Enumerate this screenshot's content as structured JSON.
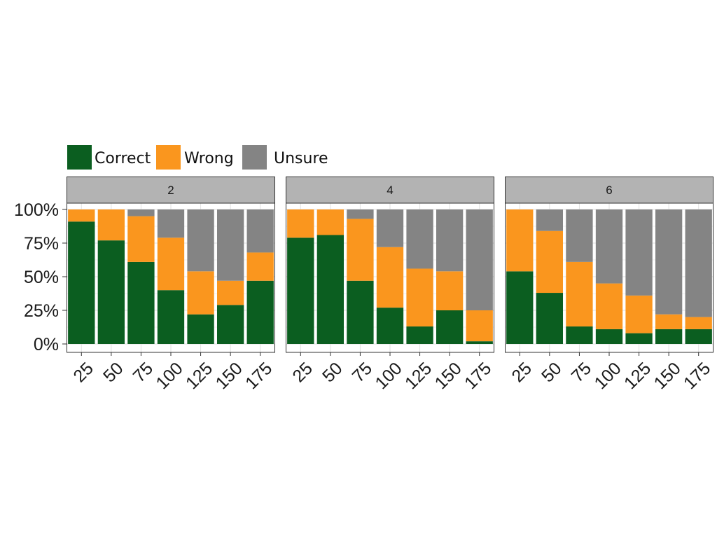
{
  "chart_data": {
    "type": "bar",
    "stacked": true,
    "facet_labels": [
      "2",
      "4",
      "6"
    ],
    "categories": [
      "25",
      "50",
      "75",
      "100",
      "125",
      "150",
      "175"
    ],
    "y_ticks": [
      "0%",
      "25%",
      "50%",
      "75%",
      "100%"
    ],
    "ylim": [
      0,
      100
    ],
    "legend_position": "top-left",
    "grid": true,
    "legend": [
      {
        "name": "Correct",
        "color": "#0b5e20"
      },
      {
        "name": "Wrong",
        "color": "#fa961e"
      },
      {
        "name": "Unsure",
        "color": "#848484"
      }
    ],
    "facets": [
      {
        "label": "2",
        "series": [
          {
            "name": "Correct",
            "values": [
              91,
              77,
              61,
              40,
              22,
              29,
              47
            ]
          },
          {
            "name": "Wrong",
            "values": [
              9,
              23,
              34,
              39,
              32,
              18,
              21
            ]
          },
          {
            "name": "Unsure",
            "values": [
              0,
              0,
              5,
              21,
              46,
              53,
              32
            ]
          }
        ]
      },
      {
        "label": "4",
        "series": [
          {
            "name": "Correct",
            "values": [
              79,
              81,
              47,
              27,
              13,
              25,
              2
            ]
          },
          {
            "name": "Wrong",
            "values": [
              21,
              19,
              46,
              45,
              43,
              29,
              23
            ]
          },
          {
            "name": "Unsure",
            "values": [
              0,
              0,
              7,
              28,
              44,
              46,
              75
            ]
          }
        ]
      },
      {
        "label": "6",
        "series": [
          {
            "name": "Correct",
            "values": [
              54,
              38,
              13,
              11,
              8,
              11,
              11
            ]
          },
          {
            "name": "Wrong",
            "values": [
              46,
              46,
              48,
              34,
              28,
              11,
              9
            ]
          },
          {
            "name": "Unsure",
            "values": [
              0,
              16,
              39,
              55,
              64,
              78,
              80
            ]
          }
        ]
      }
    ]
  }
}
